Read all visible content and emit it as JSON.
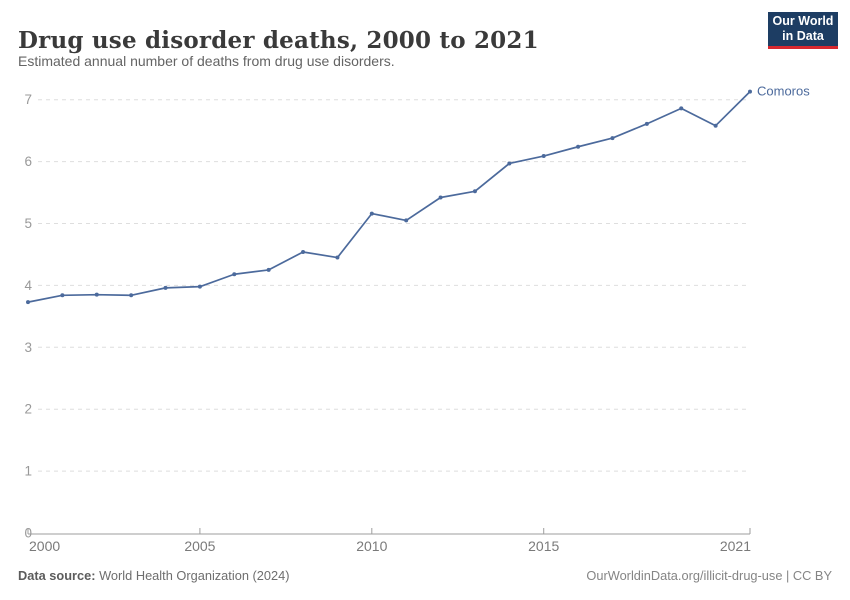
{
  "header": {
    "title": "Drug use disorder deaths, 2000 to 2021",
    "subtitle": "Estimated annual number of deaths from drug use disorders.",
    "logo": {
      "line1": "Our World",
      "line2": "in Data"
    }
  },
  "chart_data": {
    "type": "line",
    "title": "Drug use disorder deaths, 2000 to 2021",
    "subtitle": "Estimated annual number of deaths from drug use disorders.",
    "x": [
      2000,
      2001,
      2002,
      2003,
      2004,
      2005,
      2006,
      2007,
      2008,
      2009,
      2010,
      2011,
      2012,
      2013,
      2014,
      2015,
      2016,
      2017,
      2018,
      2019,
      2020,
      2021
    ],
    "series": [
      {
        "name": "Comoros",
        "values": [
          3.73,
          3.84,
          3.85,
          3.84,
          3.96,
          3.98,
          4.18,
          4.25,
          4.54,
          4.45,
          5.16,
          5.05,
          5.42,
          5.52,
          5.97,
          6.09,
          6.24,
          6.38,
          6.61,
          6.86,
          6.58,
          7.13
        ],
        "color": "#4c6a9c"
      }
    ],
    "xlabel": "",
    "ylabel": "",
    "xlim": [
      2000,
      2021
    ],
    "ylim": [
      0,
      7
    ],
    "xticks": [
      2000,
      2005,
      2010,
      2015,
      2021
    ],
    "yticks": [
      0,
      1,
      2,
      3,
      4,
      5,
      6,
      7
    ],
    "grid": "horizontal-dashed",
    "legend_position": "end-of-line-label"
  },
  "colors": {
    "line": "#4c6a9c",
    "grid": "#dedede",
    "axis": "#9e9e9e",
    "y_tick_label": "#999999",
    "x_tick_label": "#7a7a7a",
    "entity_label": "#4c6a9c",
    "logo_bg": "#1d3d63",
    "logo_red": "#d7282f"
  },
  "footer": {
    "source_label": "Data source:",
    "source_text": " World Health Organization (2024)",
    "link_text": "OurWorldinData.org/illicit-drug-use | CC BY"
  }
}
